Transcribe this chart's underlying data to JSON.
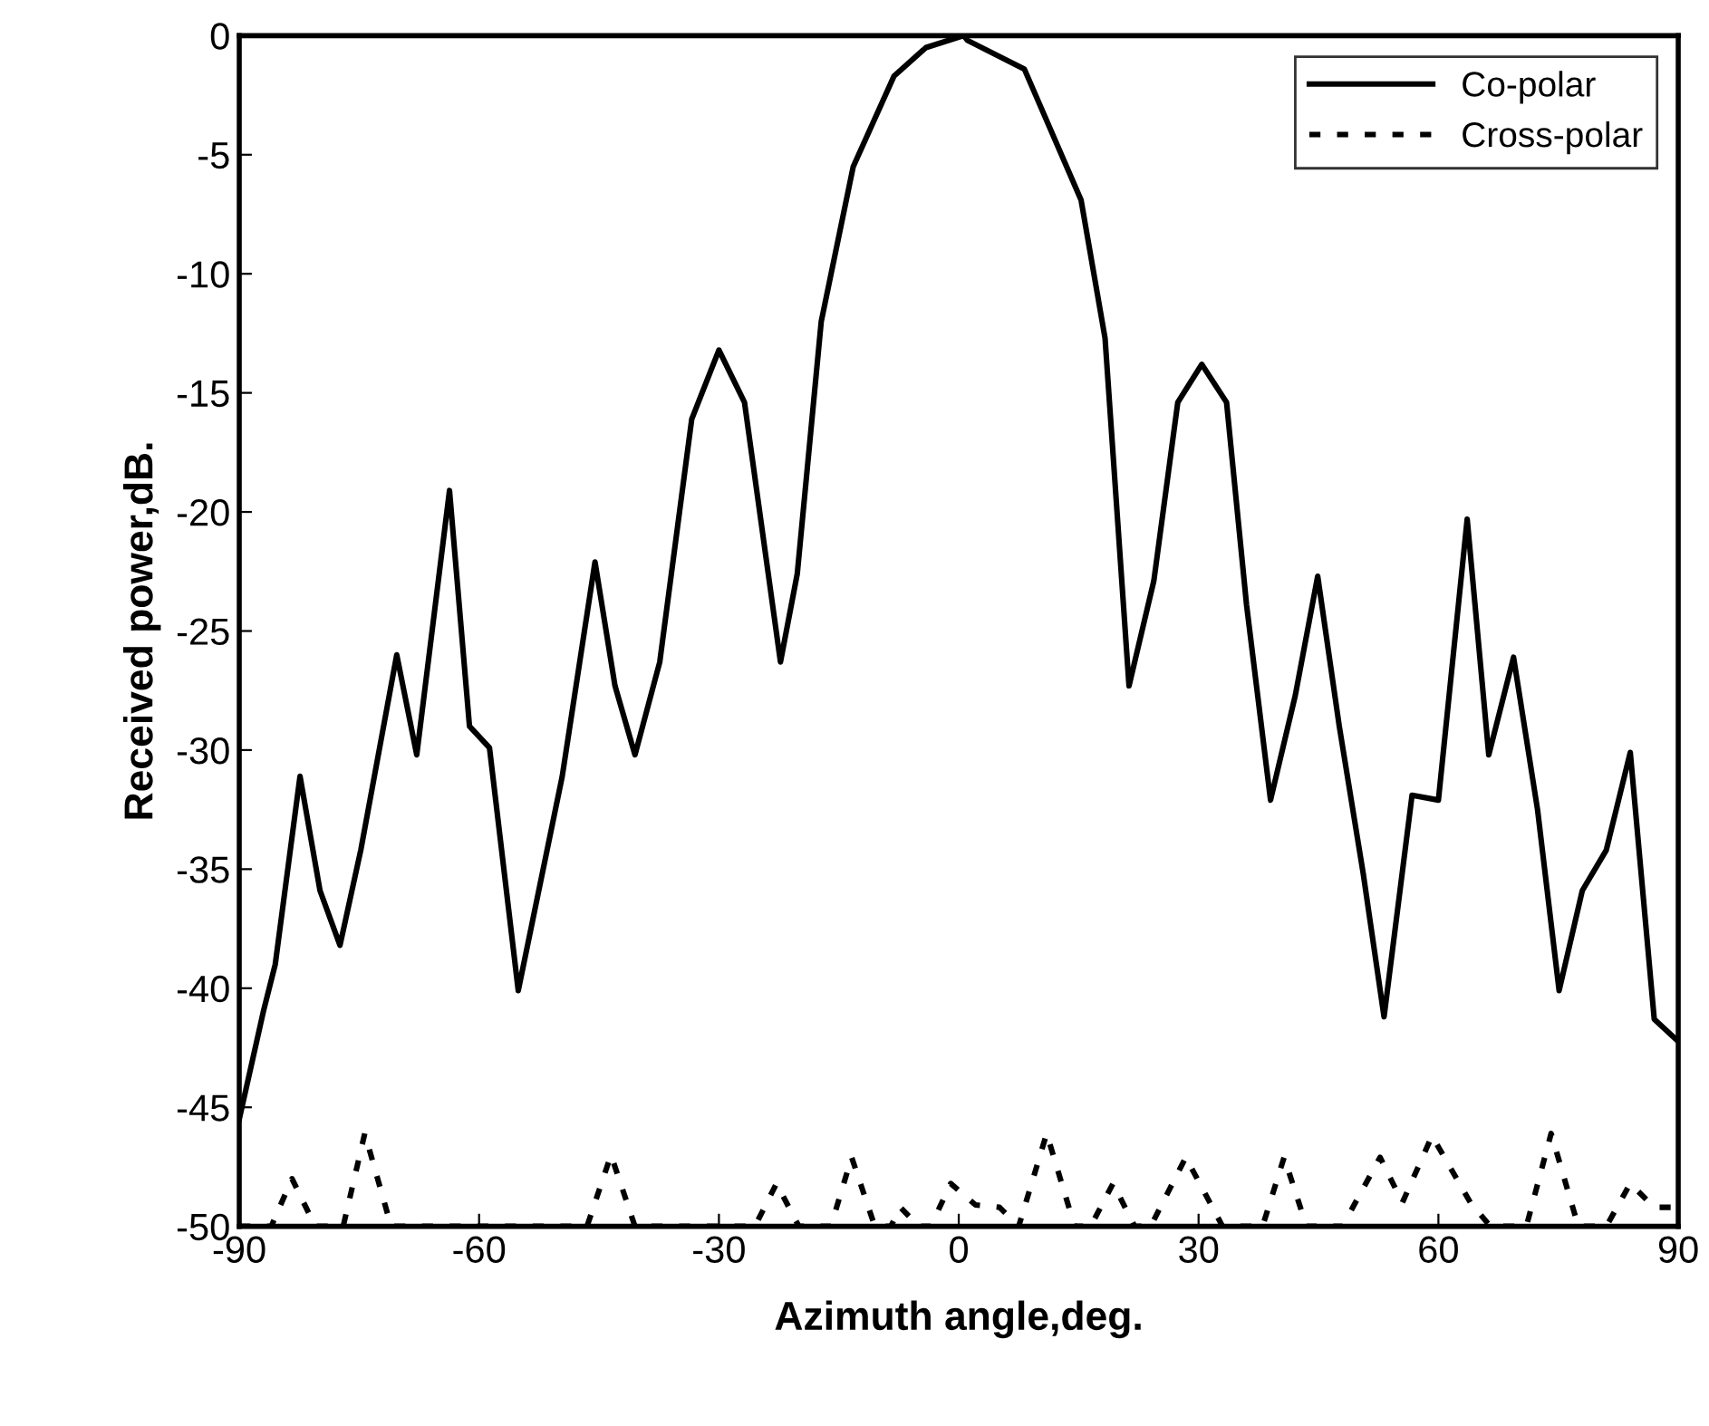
{
  "chart_data": {
    "type": "line",
    "xlabel": "Azimuth angle,deg.",
    "ylabel": "Received power,dB.",
    "xlim": [
      -90,
      90
    ],
    "xticks": [
      -90,
      -60,
      -30,
      0,
      30,
      60,
      90
    ],
    "ylim": [
      -50,
      0
    ],
    "yticks": [
      -50,
      -45,
      -40,
      -35,
      -30,
      -25,
      -20,
      -15,
      -10,
      -5,
      0
    ],
    "grid": false,
    "legend": "top right",
    "series": [
      {
        "name": "Co-polar",
        "color": "#000000",
        "line_style": "solid",
        "x": [
          -90,
          -87,
          -85.5,
          -82.4,
          -79.9,
          -77.4,
          -74.8,
          -70.3,
          -67.8,
          -63.7,
          -61.2,
          -58.7,
          -55.1,
          -49.6,
          -45.5,
          -43,
          -40.5,
          -37.4,
          -33.4,
          -30,
          -26.8,
          -22.3,
          -20.2,
          -17.2,
          -13.2,
          -8.1,
          -4.1,
          0.6,
          1.1,
          8.2,
          15.3,
          18.3,
          21.3,
          24.4,
          27.4,
          30.4,
          33.5,
          36,
          39,
          42.1,
          44.9,
          47.6,
          50.6,
          53.2,
          56.7,
          60,
          63.6,
          66.3,
          69.4,
          72.4,
          75.1,
          78,
          81,
          84,
          87,
          89.9
        ],
        "values": [
          -45.5,
          -41,
          -39,
          -31.1,
          -35.9,
          -38.2,
          -34.2,
          -26,
          -30.2,
          -19.1,
          -29,
          -29.9,
          -40.1,
          -31.1,
          -22.1,
          -27.3,
          -30.2,
          -26.3,
          -16.1,
          -13.2,
          -15.4,
          -26.3,
          -22.6,
          -12,
          -5.5,
          -1.7,
          -0.5,
          0,
          -0.2,
          -1.4,
          -6.9,
          -12.7,
          -27.3,
          -22.9,
          -15.4,
          -13.8,
          -15.4,
          -23.9,
          -32.1,
          -27.7,
          -22.7,
          -29,
          -35.2,
          -41.2,
          -31.9,
          -32.1,
          -20.3,
          -30.2,
          -26.1,
          -32.5,
          -40.1,
          -35.9,
          -34.2,
          -30.1,
          -41.3,
          -42.2
        ]
      },
      {
        "name": "Cross-polar",
        "color": "#000000",
        "line_style": "dotted",
        "x": [
          -90,
          -86,
          -83.4,
          -80.5,
          -77,
          -74.3,
          -71,
          -46.5,
          -43.5,
          -40.5,
          -25.5,
          -22.8,
          -20,
          -16,
          -13.4,
          -10.5,
          -8.5,
          -7.3,
          -5,
          -3.5,
          -1,
          2.1,
          5.1,
          7.5,
          11,
          14.5,
          16.5,
          19.3,
          22,
          24,
          28.4,
          33,
          38,
          40.7,
          43.5,
          48,
          52.7,
          55.5,
          59.2,
          64,
          66.5,
          71,
          74.1,
          77.5,
          81,
          84,
          87,
          90
        ],
        "values": [
          -50,
          -50,
          -48,
          -50,
          -50,
          -46.1,
          -50,
          -50,
          -47,
          -50,
          -50,
          -48.2,
          -50,
          -50,
          -47.1,
          -50,
          -50,
          -49.2,
          -50,
          -50,
          -48.2,
          -49.1,
          -49.2,
          -50,
          -46.1,
          -50,
          -50,
          -48.2,
          -50,
          -50,
          -47.1,
          -50,
          -50,
          -47.1,
          -50,
          -50,
          -47.1,
          -49,
          -46.2,
          -49,
          -50,
          -50,
          -46.1,
          -50,
          -50,
          -48.2,
          -49.2,
          -49.2
        ]
      }
    ]
  }
}
